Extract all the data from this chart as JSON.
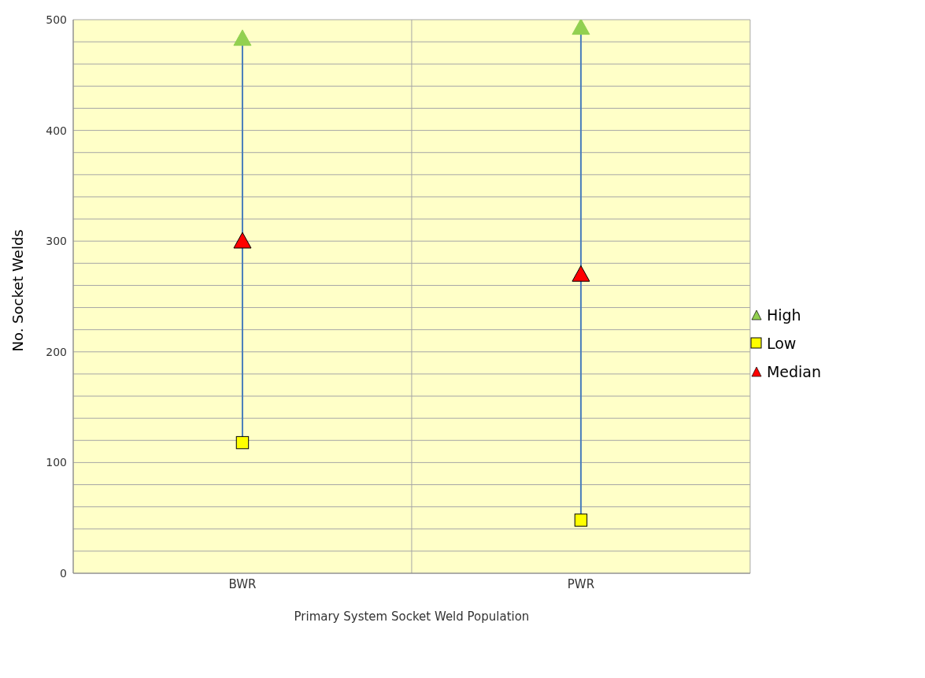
{
  "chart_data": {
    "type": "scatter",
    "xlabel": "Primary System Socket Weld Population",
    "ylabel": "No. Socket Welds",
    "categories": [
      "BWR",
      "PWR"
    ],
    "series": [
      {
        "name": "High",
        "color": "#92d050",
        "marker": "triangle",
        "values": [
          483,
          493
        ]
      },
      {
        "name": "Low",
        "color": "#ffff00",
        "marker": "square",
        "values": [
          118,
          48
        ]
      },
      {
        "name": "Median",
        "color": "#ff0000",
        "marker": "triangle",
        "values": [
          300,
          270
        ]
      }
    ],
    "ylim": [
      0,
      500
    ],
    "yticks": [
      0,
      {
        "value": 20,
        "label": null
      },
      {
        "value": 40,
        "label": null
      },
      {
        "value": 60,
        "label": null
      },
      {
        "value": 80,
        "label": null
      },
      100,
      {
        "value": 120,
        "label": null
      },
      {
        "value": 140,
        "label": null
      },
      {
        "value": 160,
        "label": null
      },
      {
        "value": 180,
        "label": null
      },
      200,
      {
        "value": 220,
        "label": null
      },
      {
        "value": 240,
        "label": null
      },
      {
        "value": 260,
        "label": null
      },
      {
        "value": 280,
        "label": null
      },
      300,
      {
        "value": 320,
        "label": null
      },
      {
        "value": 340,
        "label": null
      },
      {
        "value": 360,
        "label": null
      },
      {
        "value": 380,
        "label": null
      },
      400,
      {
        "value": 420,
        "label": null
      },
      {
        "value": 440,
        "label": null
      },
      {
        "value": 460,
        "label": null
      },
      {
        "value": 480,
        "label": null
      },
      500
    ],
    "grid": true,
    "legend": "right"
  }
}
